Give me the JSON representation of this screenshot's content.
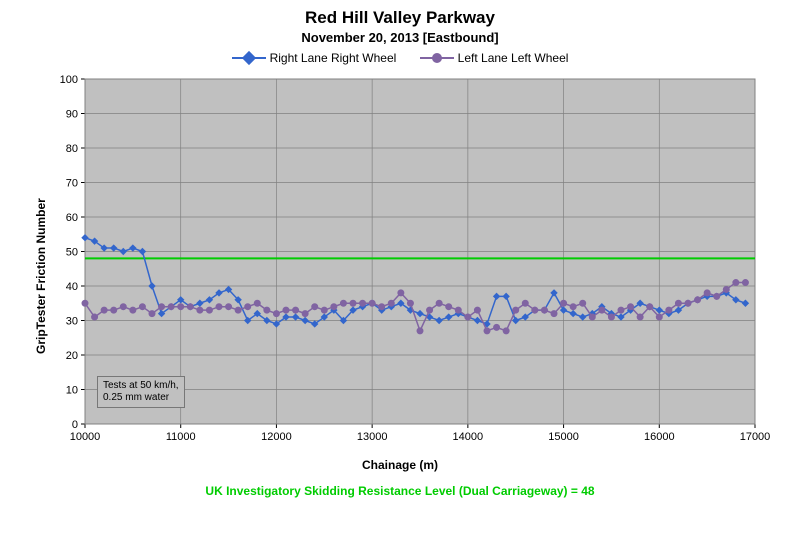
{
  "chart": {
    "type": "line",
    "title": "Red Hill Valley Parkway",
    "subtitle": "November 20, 2013  [Eastbound]",
    "title_fontsize": 17,
    "subtitle_fontsize": 13,
    "xlabel": "Chainage (m)",
    "ylabel": "GripTester Friction Number",
    "label_fontsize": 12,
    "background_color": "#ffffff",
    "plot_bg_color": "#c0c0c0",
    "grid_color": "#808080",
    "border_color": "#808080",
    "xlim": [
      10000,
      17000
    ],
    "ylim": [
      0,
      100
    ],
    "xtick_step": 1000,
    "ytick_step": 10,
    "tick_fontsize": 11,
    "reference_line": {
      "value": 48,
      "color": "#00cc00",
      "width": 2,
      "label": "UK Investigatory Skidding Resistance Level (Dual Carriageway) = 48",
      "label_color": "#00cc00"
    },
    "note": {
      "line1": "Tests at 50 km/h,",
      "line2": "0.25 mm water",
      "fontsize": 10,
      "border_color": "#777777",
      "bg_color": "#c0c0c0"
    },
    "series": [
      {
        "name": "Right Lane Right Wheel",
        "color": "#3366cc",
        "line_width": 1.5,
        "marker": "diamond",
        "marker_size": 6,
        "x": [
          10000,
          10100,
          10200,
          10300,
          10400,
          10500,
          10600,
          10700,
          10800,
          10900,
          11000,
          11100,
          11200,
          11300,
          11400,
          11500,
          11600,
          11700,
          11800,
          11900,
          12000,
          12100,
          12200,
          12300,
          12400,
          12500,
          12600,
          12700,
          12800,
          12900,
          13000,
          13100,
          13200,
          13300,
          13400,
          13500,
          13600,
          13700,
          13800,
          13900,
          14000,
          14100,
          14200,
          14300,
          14400,
          14500,
          14600,
          14700,
          14800,
          14900,
          15000,
          15100,
          15200,
          15300,
          15400,
          15500,
          15600,
          15700,
          15800,
          15900,
          16000,
          16100,
          16200,
          16300,
          16400,
          16500,
          16600,
          16700,
          16800,
          16900
        ],
        "y": [
          54,
          53,
          51,
          51,
          50,
          51,
          50,
          40,
          32,
          34,
          36,
          34,
          35,
          36,
          38,
          39,
          36,
          30,
          32,
          30,
          29,
          31,
          31,
          30,
          29,
          31,
          33,
          30,
          33,
          34,
          35,
          33,
          34,
          35,
          33,
          32,
          31,
          30,
          31,
          32,
          31,
          30,
          29,
          37,
          37,
          30,
          31,
          33,
          33,
          38,
          33,
          32,
          31,
          32,
          34,
          32,
          31,
          33,
          35,
          34,
          33,
          32,
          33,
          35,
          36,
          37,
          37,
          38,
          36,
          35
        ]
      },
      {
        "name": "Left Lane Left Wheel",
        "color": "#8064a2",
        "line_width": 1.5,
        "marker": "circle",
        "marker_size": 6,
        "x": [
          10000,
          10100,
          10200,
          10300,
          10400,
          10500,
          10600,
          10700,
          10800,
          10900,
          11000,
          11100,
          11200,
          11300,
          11400,
          11500,
          11600,
          11700,
          11800,
          11900,
          12000,
          12100,
          12200,
          12300,
          12400,
          12500,
          12600,
          12700,
          12800,
          12900,
          13000,
          13100,
          13200,
          13300,
          13400,
          13500,
          13600,
          13700,
          13800,
          13900,
          14000,
          14100,
          14200,
          14300,
          14400,
          14500,
          14600,
          14700,
          14800,
          14900,
          15000,
          15100,
          15200,
          15300,
          15400,
          15500,
          15600,
          15700,
          15800,
          15900,
          16000,
          16100,
          16200,
          16300,
          16400,
          16500,
          16600,
          16700,
          16800,
          16900
        ],
        "y": [
          35,
          31,
          33,
          33,
          34,
          33,
          34,
          32,
          34,
          34,
          34,
          34,
          33,
          33,
          34,
          34,
          33,
          34,
          35,
          33,
          32,
          33,
          33,
          32,
          34,
          33,
          34,
          35,
          35,
          35,
          35,
          34,
          35,
          38,
          35,
          27,
          33,
          35,
          34,
          33,
          31,
          33,
          27,
          28,
          27,
          33,
          35,
          33,
          33,
          32,
          35,
          34,
          35,
          31,
          33,
          31,
          33,
          34,
          31,
          34,
          31,
          33,
          35,
          35,
          36,
          38,
          37,
          39,
          41,
          41
        ]
      }
    ]
  }
}
